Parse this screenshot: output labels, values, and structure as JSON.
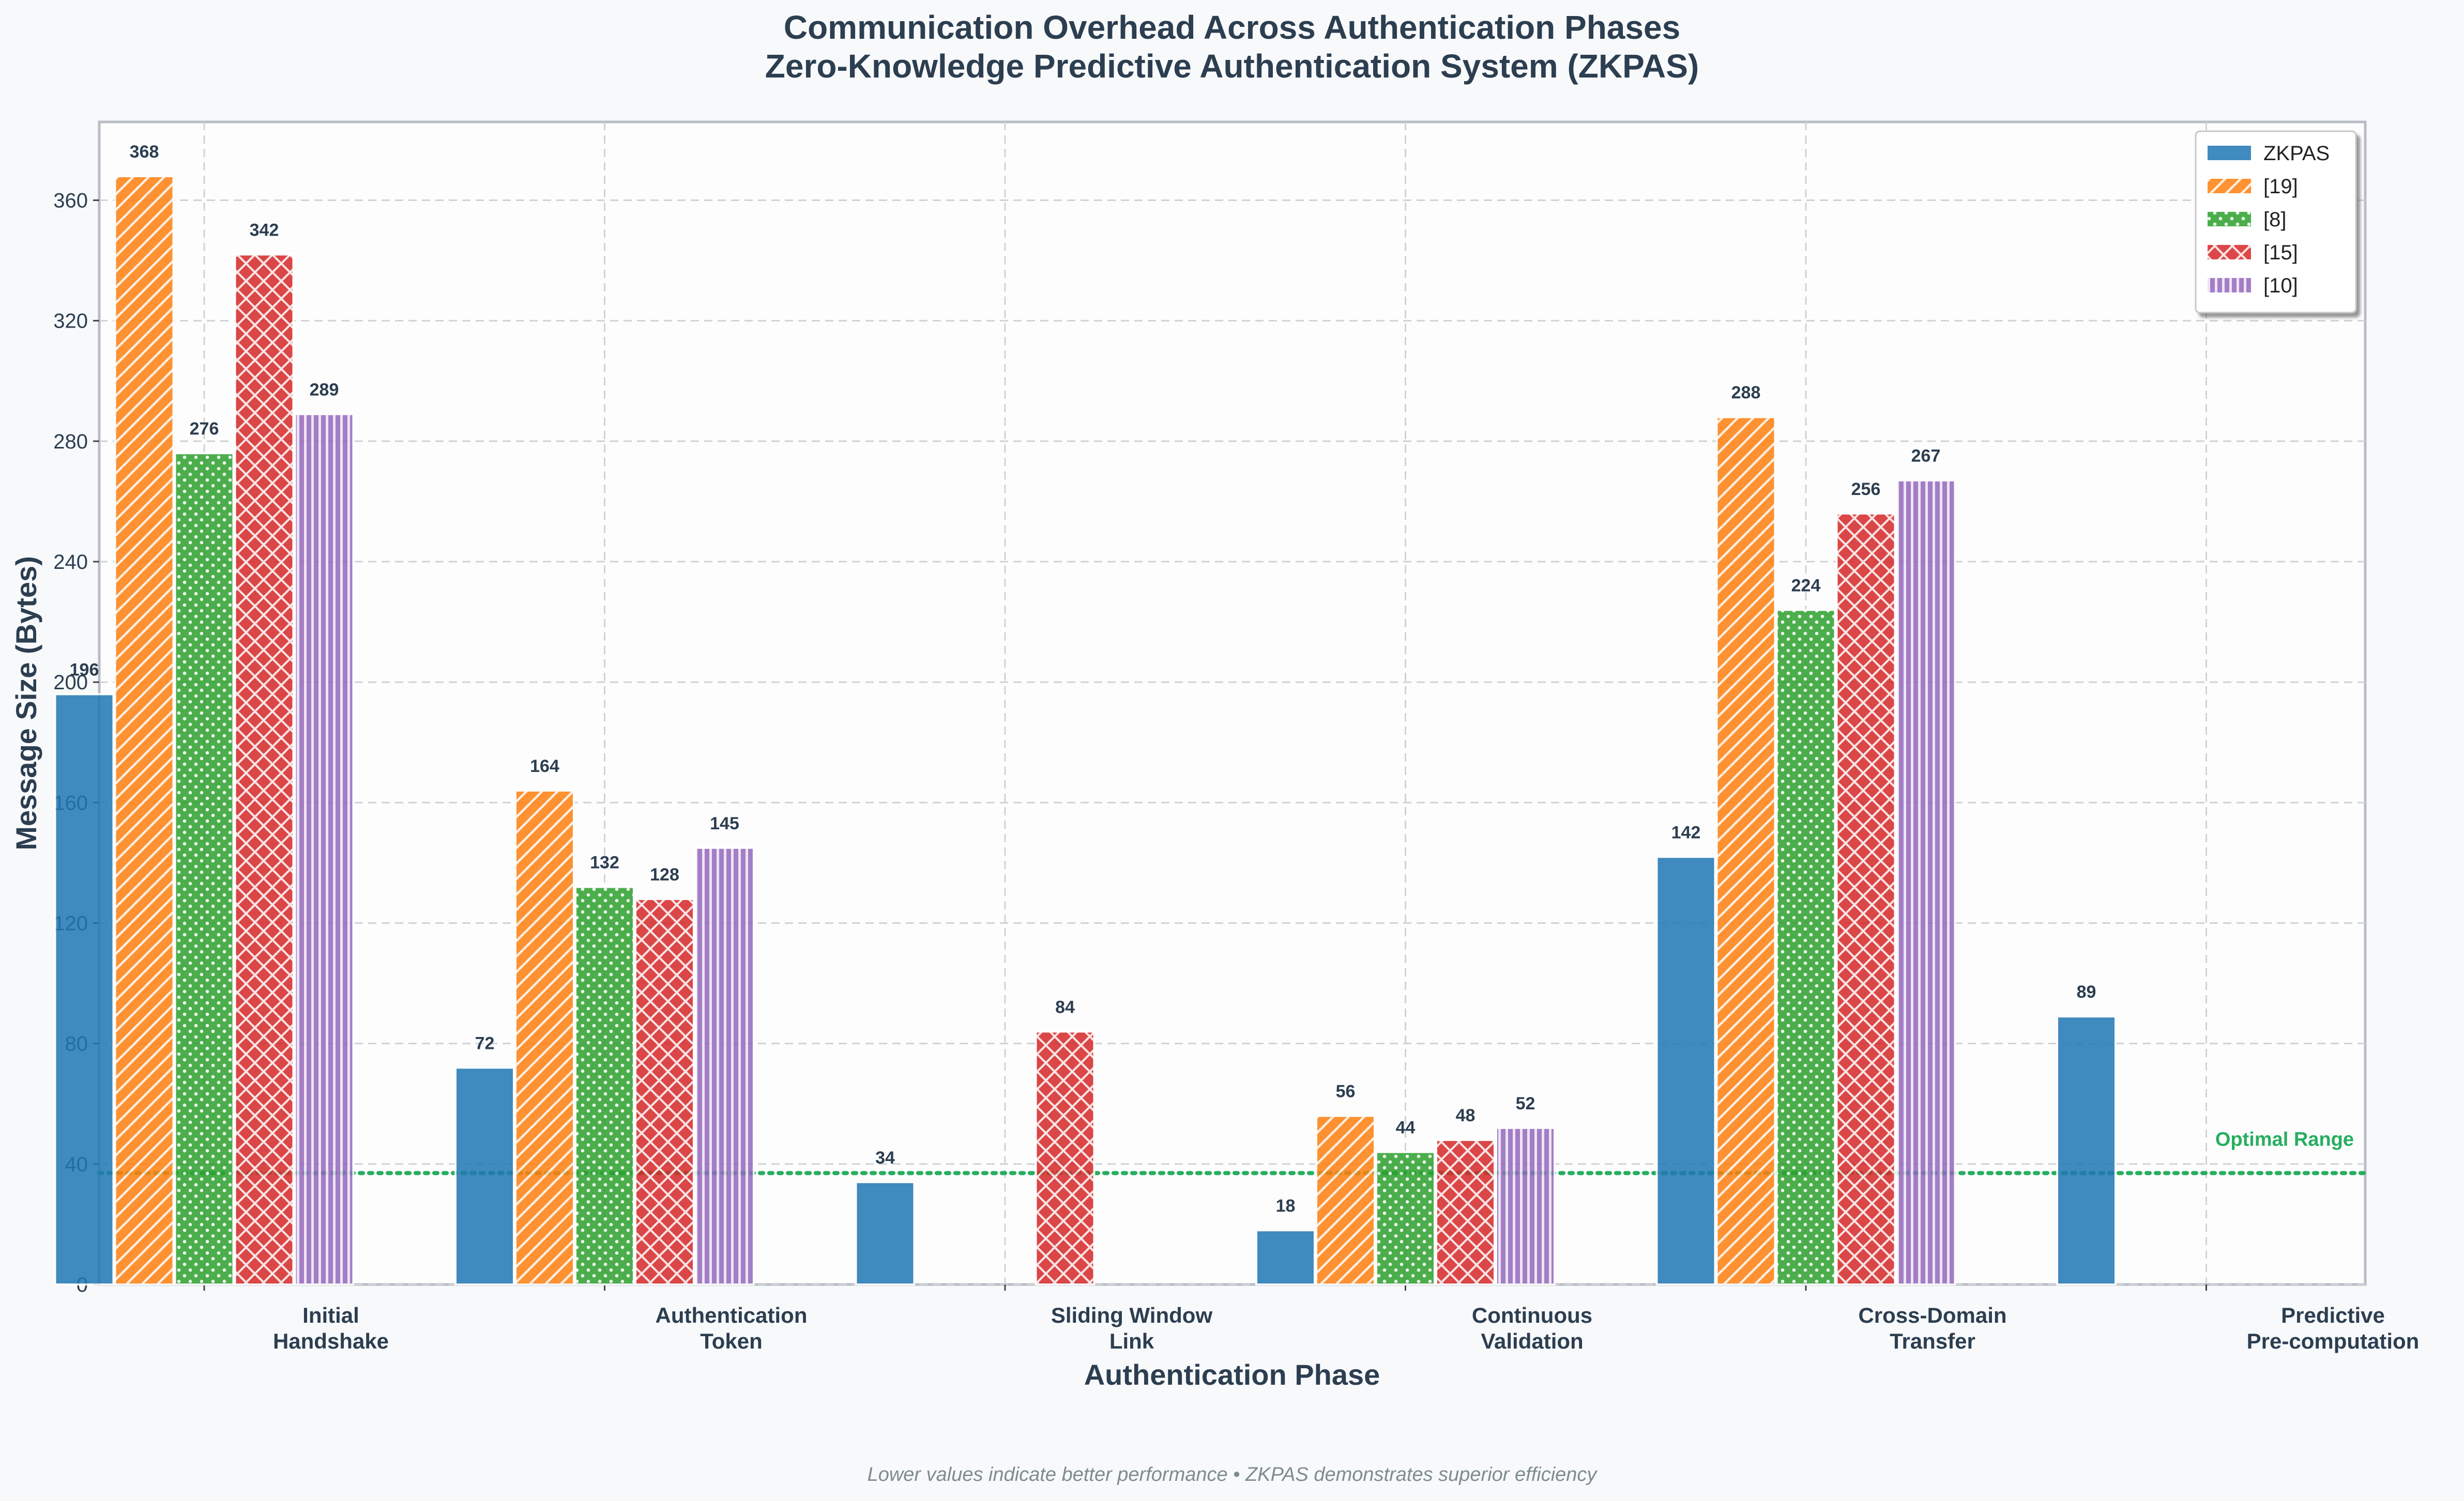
{
  "chart_data": {
    "type": "bar",
    "title": "Communication Overhead Across Authentication Phases",
    "subtitle": "Zero-Knowledge Predictive Authentication System (ZKPAS)",
    "xlabel": "Authentication Phase",
    "ylabel": "Message Size (Bytes)",
    "ylim": [
      0,
      386
    ],
    "yticks": [
      0,
      40,
      80,
      120,
      160,
      200,
      240,
      280,
      320,
      360
    ],
    "grid": true,
    "legend_position": "top-right",
    "categories": [
      "Initial\nHandshake",
      "Authentication\nToken",
      "Sliding Window\nLink",
      "Continuous\nValidation",
      "Cross-Domain\nTransfer",
      "Predictive\nPre-computation"
    ],
    "series": [
      {
        "name": "ZKPAS",
        "color": "#1f77b4",
        "pattern": "solid",
        "values": [
          196,
          72,
          34,
          18,
          142,
          89
        ]
      },
      {
        "name": "[19]",
        "color": "#ff7f0e",
        "pattern": "diagonal",
        "values": [
          368,
          164,
          null,
          56,
          288,
          null
        ]
      },
      {
        "name": "[8]",
        "color": "#2ca02c",
        "pattern": "dots",
        "values": [
          276,
          132,
          null,
          44,
          224,
          null
        ]
      },
      {
        "name": "[15]",
        "color": "#d62728",
        "pattern": "crosshatch",
        "values": [
          342,
          128,
          84,
          48,
          256,
          null
        ]
      },
      {
        "name": "[10]",
        "color": "#9467bd",
        "pattern": "vertical",
        "values": [
          289,
          145,
          null,
          52,
          267,
          null
        ]
      }
    ],
    "reference_line": {
      "value": 37,
      "label": "Optimal Range",
      "color": "#27ae60"
    },
    "footnote": "Lower values indicate better performance • ZKPAS demonstrates superior efficiency"
  }
}
